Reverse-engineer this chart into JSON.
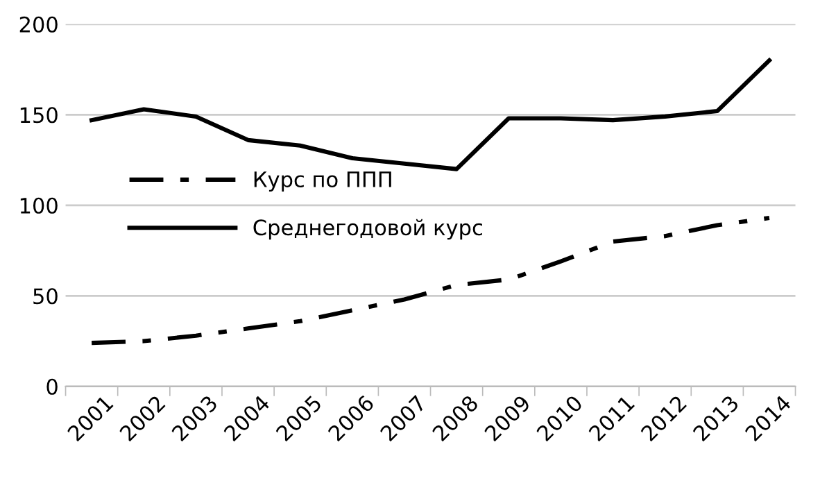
{
  "chart_data": {
    "type": "line",
    "categories": [
      "2001",
      "2002",
      "2003",
      "2004",
      "2005",
      "2006",
      "2007",
      "2008",
      "2009",
      "2010",
      "2011",
      "2012",
      "2013",
      "2014"
    ],
    "series": [
      {
        "name": "Курс по ППП",
        "color": "#000000",
        "line_style": "dashdot",
        "values": [
          24,
          25,
          28,
          32,
          36,
          42,
          48,
          56,
          59,
          69,
          80,
          83,
          89,
          93
        ]
      },
      {
        "name": "Среднегодовой курс",
        "color": "#000000",
        "line_style": "solid",
        "values": [
          147,
          153,
          149,
          136,
          133,
          126,
          123,
          120,
          148,
          148,
          147,
          149,
          152,
          180
        ]
      }
    ],
    "ylim": [
      0,
      200
    ],
    "yticks": [
      0,
      50,
      100,
      150,
      200
    ],
    "grid": "y",
    "legend": "center",
    "marker": "none"
  }
}
